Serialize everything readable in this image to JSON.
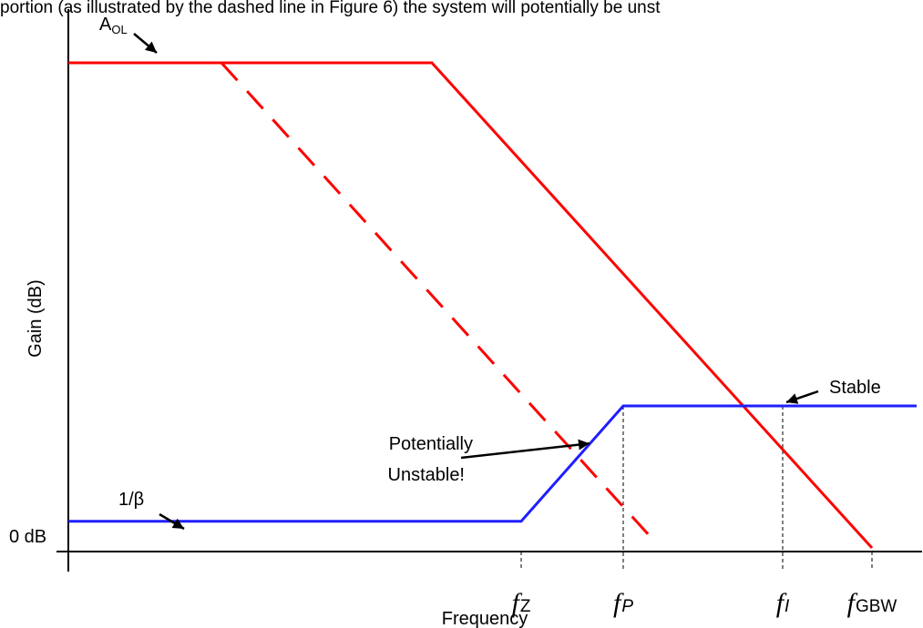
{
  "caption": "portion (as illustrated by the dashed line in Figure 6) the system will potentially be unst",
  "colors": {
    "aol": "#ff0000",
    "beta": "#1f1fff",
    "axis": "#000000"
  },
  "chart_data": {
    "type": "line",
    "xlabel": "Frequency",
    "ylabel": "Gain (dB)",
    "x_scale": "log (relative, unlabeled)",
    "y_scale": "relative, unlabeled",
    "y_ticks": [
      {
        "label": "0 dB",
        "value": 0
      }
    ],
    "x_ticks": [
      {
        "sym": "f",
        "sub": "Z",
        "x": 7.1
      },
      {
        "sym": "f",
        "sub": "P",
        "x": 8.7
      },
      {
        "sym": "f",
        "sub": "I",
        "x": 11.2
      },
      {
        "sym": "f",
        "sub": "GBW",
        "x": 12.6
      }
    ],
    "series": [
      {
        "name": "A",
        "name_sub": "OL",
        "style": "solid",
        "color": "#ff0000",
        "points": [
          [
            0,
            8.0
          ],
          [
            5.7,
            8.0
          ],
          [
            12.6,
            -0.2
          ]
        ]
      },
      {
        "name": "",
        "style": "dashed",
        "color": "#ff0000",
        "points": [
          [
            2.4,
            8.0
          ],
          [
            9.2,
            -0.1
          ]
        ]
      },
      {
        "name": "1/β",
        "style": "solid",
        "color": "#1f1fff",
        "points": [
          [
            0,
            0.25
          ],
          [
            7.1,
            0.25
          ],
          [
            8.7,
            2.2
          ],
          [
            13.3,
            2.2
          ]
        ]
      }
    ],
    "annotations": [
      {
        "id": "stable",
        "lines": [
          "Stable"
        ],
        "target": [
          11.2,
          2.2
        ]
      },
      {
        "id": "potential",
        "lines": [
          "Potentially",
          "Unstable!"
        ],
        "target": [
          8.2,
          1.55
        ]
      }
    ]
  }
}
